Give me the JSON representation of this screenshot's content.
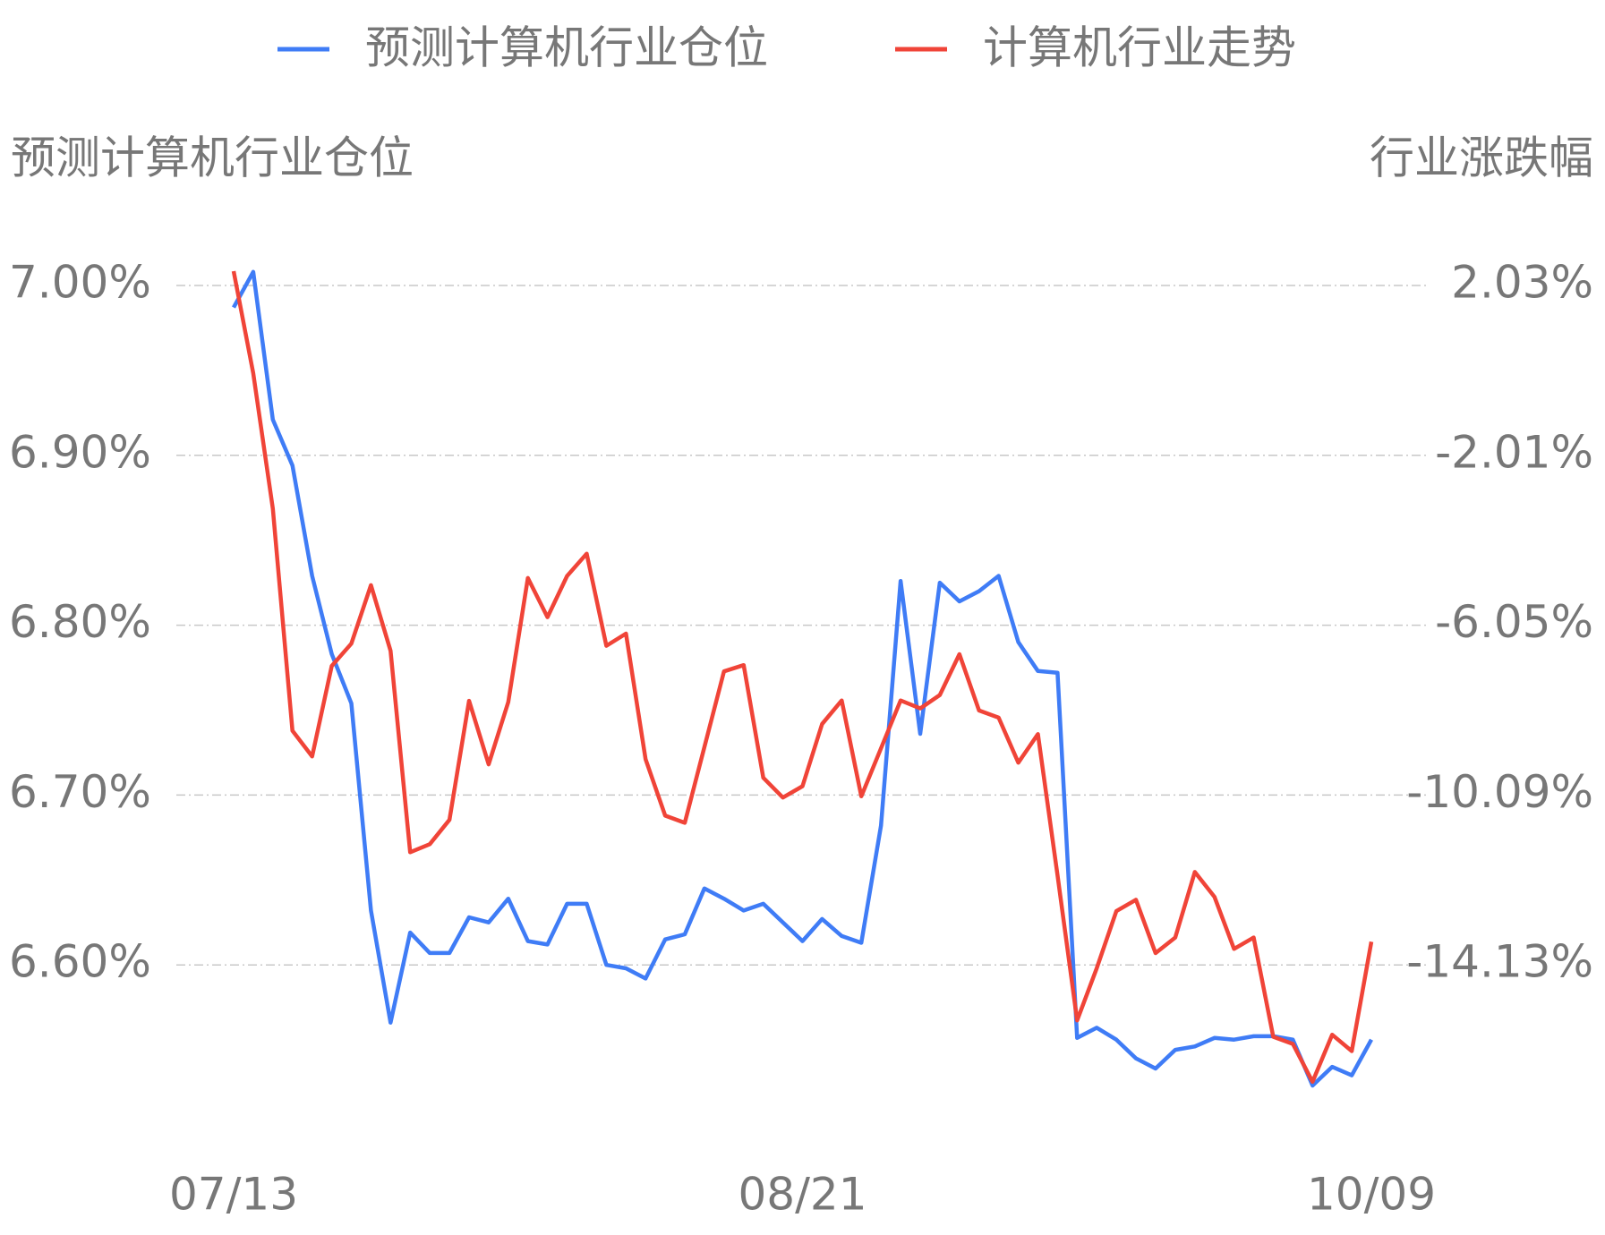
{
  "chart_data": {
    "type": "line",
    "ylabel": "预测计算机行业仓位",
    "y2label": "行业涨跌幅",
    "categories": [
      "07/13",
      null,
      null,
      null,
      null,
      null,
      null,
      null,
      null,
      null,
      null,
      null,
      null,
      null,
      null,
      null,
      null,
      null,
      null,
      null,
      null,
      null,
      null,
      null,
      null,
      null,
      null,
      null,
      null,
      "08/21",
      null,
      null,
      null,
      null,
      null,
      null,
      null,
      null,
      null,
      null,
      null,
      null,
      null,
      null,
      null,
      null,
      null,
      null,
      null,
      null,
      null,
      null,
      null,
      null,
      null,
      null,
      null,
      null,
      "10/09"
    ],
    "series": [
      {
        "name": "预测计算机行业仓位",
        "color": "#3f7cf6",
        "values": [
          6.987,
          7.008,
          6.921,
          6.894,
          6.829,
          6.783,
          6.754,
          6.632,
          6.566,
          6.619,
          6.607,
          6.607,
          6.628,
          6.625,
          6.639,
          6.614,
          6.612,
          6.636,
          6.636,
          6.6,
          6.598,
          6.592,
          6.615,
          6.618,
          6.645,
          6.639,
          6.632,
          6.636,
          6.625,
          6.614,
          6.627,
          6.617,
          6.613,
          6.682,
          6.826,
          6.736,
          6.825,
          6.814,
          6.82,
          6.829,
          6.79,
          6.773,
          6.772,
          6.557,
          6.563,
          6.556,
          6.545,
          6.539,
          6.55,
          6.552,
          6.557,
          6.556,
          6.558,
          6.558,
          6.556,
          6.529,
          6.54,
          6.535,
          6.556
        ]
      },
      {
        "name": "计算机行业走势",
        "color": "#f04438",
        "axis": "y2",
        "values": [
          2.37,
          -0.06,
          -3.28,
          -8.56,
          -9.17,
          -7.02,
          -6.49,
          -5.1,
          -6.66,
          -11.45,
          -11.26,
          -10.68,
          -7.85,
          -9.36,
          -7.88,
          -4.93,
          -5.86,
          -4.88,
          -4.35,
          -6.54,
          -6.25,
          -9.24,
          -10.58,
          -10.75,
          -8.95,
          -7.15,
          -7.0,
          -9.68,
          -10.15,
          -9.88,
          -8.4,
          -7.84,
          -10.12,
          -8.98,
          -7.84,
          -8.03,
          -7.71,
          -6.74,
          -8.08,
          -8.25,
          -9.32,
          -8.64,
          -12.0,
          -15.45,
          -14.21,
          -12.85,
          -12.58,
          -13.85,
          -13.48,
          -11.92,
          -12.51,
          -13.75,
          -13.48,
          -15.84,
          -16.01,
          -16.91,
          -15.79,
          -16.18,
          -13.58
        ]
      }
    ],
    "ylim": [
      6.5,
      7.03
    ],
    "yticks": [
      {
        "value": 6.6,
        "label": "6.60%"
      },
      {
        "value": 6.7,
        "label": "6.70%"
      },
      {
        "value": 6.8,
        "label": "6.80%"
      },
      {
        "value": 6.9,
        "label": "6.90%"
      },
      {
        "value": 7.0,
        "label": "7.00%"
      }
    ],
    "y2lim": [
      -18.17,
      3.242
    ],
    "y2ticks": [
      {
        "value": -14.13,
        "label": "-14.13%"
      },
      {
        "value": -10.09,
        "label": "-10.09%"
      },
      {
        "value": -6.05,
        "label": "-6.05%"
      },
      {
        "value": -2.01,
        "label": "-2.01%"
      },
      {
        "value": 2.03,
        "label": "2.03%"
      }
    ],
    "grid": true,
    "legend": "top"
  }
}
